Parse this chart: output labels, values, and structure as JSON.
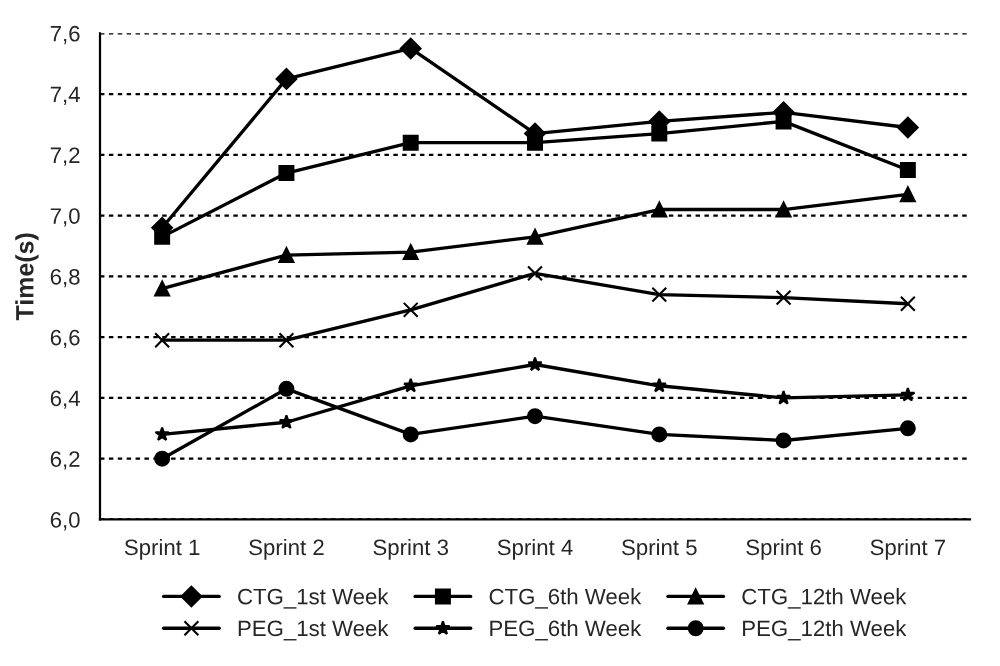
{
  "chart_data": {
    "type": "line",
    "ylabel": "Time(s)",
    "categories": [
      "Sprint 1",
      "Sprint 2",
      "Sprint 3",
      "Sprint 4",
      "Sprint 5",
      "Sprint 6",
      "Sprint 7"
    ],
    "series": [
      {
        "name": "CTG_1st Week",
        "color": "#000000",
        "marker": "diamond",
        "values": [
          6.96,
          7.45,
          7.55,
          7.27,
          7.31,
          7.34,
          7.29
        ]
      },
      {
        "name": "CTG_6th Week",
        "color": "#000000",
        "marker": "square",
        "values": [
          6.93,
          7.14,
          7.24,
          7.24,
          7.27,
          7.31,
          7.15
        ]
      },
      {
        "name": "CTG_12th Week",
        "color": "#000000",
        "marker": "triangle",
        "values": [
          6.76,
          6.87,
          6.88,
          6.93,
          7.02,
          7.02,
          7.07
        ]
      },
      {
        "name": "PEG_1st Week",
        "color": "#000000",
        "marker": "cross",
        "values": [
          6.59,
          6.59,
          6.69,
          6.81,
          6.74,
          6.73,
          6.71
        ]
      },
      {
        "name": "PEG_6th Week",
        "color": "#000000",
        "marker": "star",
        "values": [
          6.28,
          6.32,
          6.44,
          6.51,
          6.44,
          6.4,
          6.41
        ]
      },
      {
        "name": "PEG_12th Week",
        "color": "#000000",
        "marker": "circle",
        "values": [
          6.2,
          6.43,
          6.28,
          6.34,
          6.28,
          6.26,
          6.3
        ]
      }
    ],
    "ylim": [
      6.0,
      7.6
    ],
    "yticks": [
      {
        "value": 6.0,
        "label": "6,0"
      },
      {
        "value": 6.2,
        "label": "6,2"
      },
      {
        "value": 6.4,
        "label": "6,4"
      },
      {
        "value": 6.6,
        "label": "6,6"
      },
      {
        "value": 6.8,
        "label": "6,8"
      },
      {
        "value": 7.0,
        "label": "7,0"
      },
      {
        "value": 7.2,
        "label": "7,2"
      },
      {
        "value": 7.4,
        "label": "7,4"
      },
      {
        "value": 7.6,
        "label": "7,6"
      }
    ],
    "grid": "y",
    "legend": "bottom",
    "line_style": "solid"
  }
}
